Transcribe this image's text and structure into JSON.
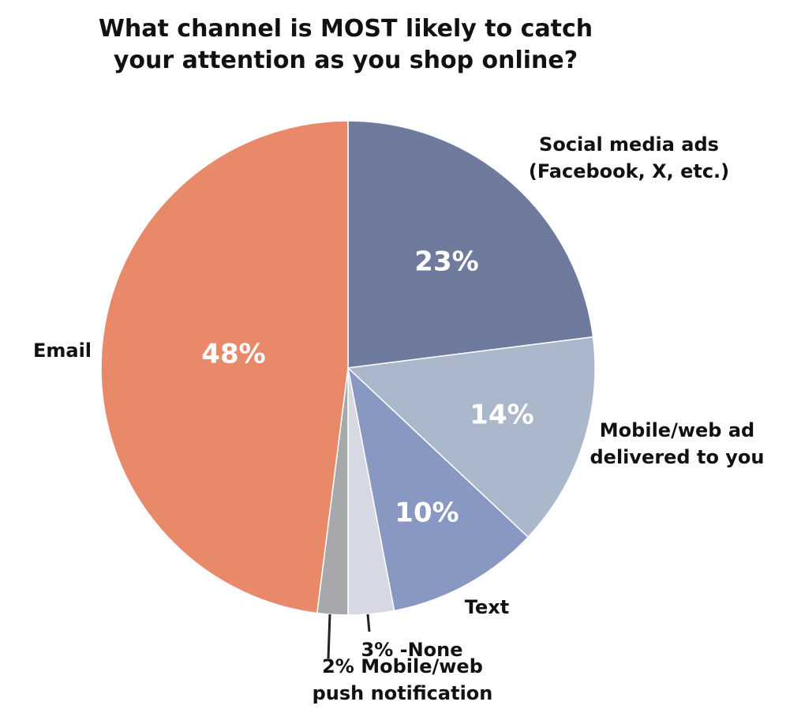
{
  "chart_data": {
    "type": "pie",
    "title_lines": [
      "What channel is MOST likely to catch",
      "your attention as you shop online?"
    ],
    "slices": [
      {
        "label_lines": [
          "Social media ads",
          "(Facebook, X, etc.)"
        ],
        "value": 23,
        "value_label": "23%",
        "color": "#6e7b9c"
      },
      {
        "label_lines": [
          "Mobile/web ad",
          "delivered to you"
        ],
        "value": 14,
        "value_label": "14%",
        "color": "#abb7ca"
      },
      {
        "label_lines": [
          "Text"
        ],
        "value": 10,
        "value_label": "10%",
        "color": "#8898c2"
      },
      {
        "label_lines": [
          "3% -None"
        ],
        "value": 3,
        "value_label": "",
        "color": "#d6d9e3"
      },
      {
        "label_lines": [
          "2% Mobile/web",
          "push notification"
        ],
        "value": 2,
        "value_label": "",
        "color": "#a6a8ac"
      },
      {
        "label_lines": [
          "Email"
        ],
        "value": 48,
        "value_label": "48%",
        "color": "#e8896a"
      }
    ]
  }
}
